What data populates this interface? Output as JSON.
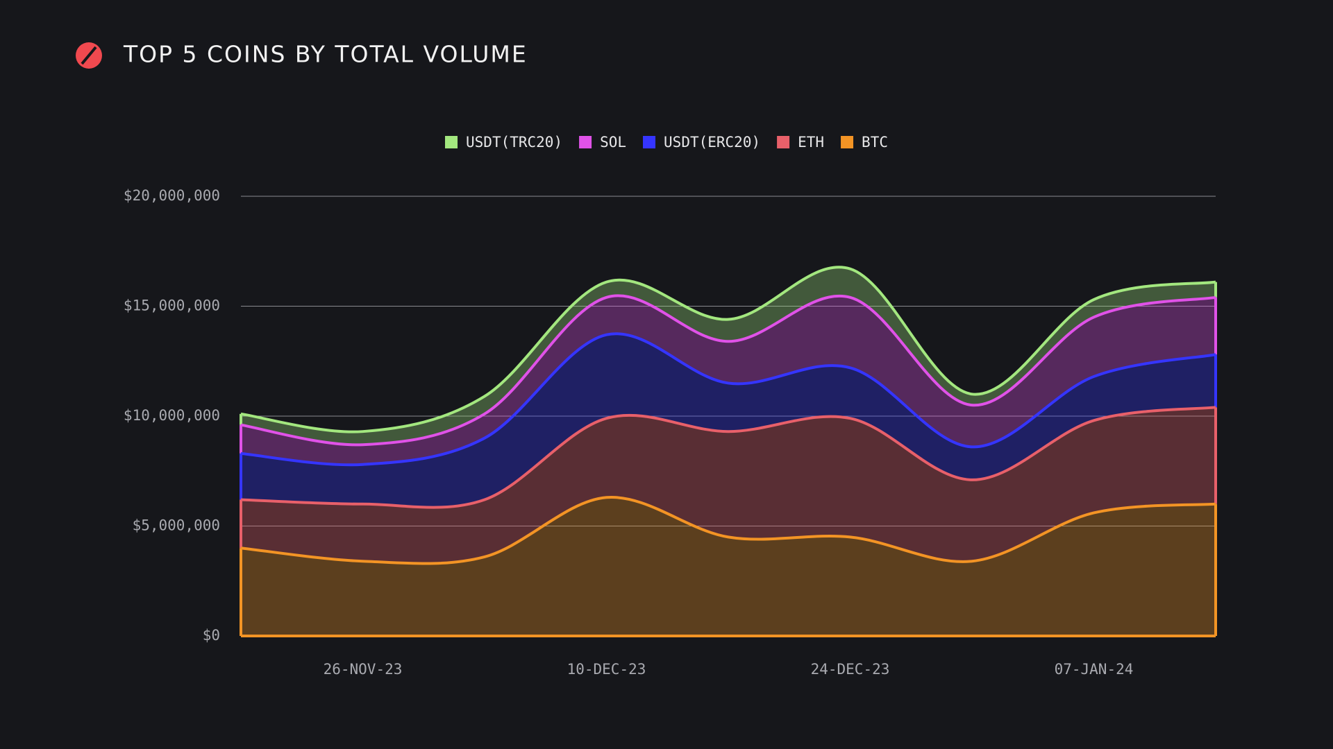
{
  "chart_data": {
    "type": "stacked-area",
    "title": "TOP 5 COINS BY TOTAL VOLUME",
    "categories": [
      null,
      "26-NOV-23",
      null,
      "10-DEC-23",
      null,
      "24-DEC-23",
      null,
      "07-JAN-24",
      null
    ],
    "series": [
      {
        "name": "USDT(TRC20)",
        "color": "#a3e77f",
        "values": [
          500000,
          600000,
          800000,
          700000,
          1000000,
          1300000,
          500000,
          800000,
          700000
        ]
      },
      {
        "name": "SOL",
        "color": "#e052e8",
        "values": [
          1300000,
          900000,
          1100000,
          1700000,
          1900000,
          3200000,
          1900000,
          2700000,
          2600000
        ]
      },
      {
        "name": "USDT(ERC20)",
        "color": "#3535ff",
        "values": [
          2100000,
          1800000,
          2800000,
          3800000,
          2200000,
          2300000,
          1500000,
          2000000,
          2400000
        ]
      },
      {
        "name": "ETH",
        "color": "#e8606a",
        "values": [
          2200000,
          2600000,
          2600000,
          3600000,
          4800000,
          5400000,
          3700000,
          4200000,
          4400000
        ]
      },
      {
        "name": "BTC",
        "color": "#f39425",
        "values": [
          4000000,
          3400000,
          3600000,
          6300000,
          4500000,
          4500000,
          3400000,
          5600000,
          6000000
        ]
      }
    ],
    "ylim": [
      0,
      20000000
    ],
    "yticks": [
      {
        "value": 0,
        "label": "$0"
      },
      {
        "value": 5000000,
        "label": "$5,000,000"
      },
      {
        "value": 10000000,
        "label": "$10,000,000"
      },
      {
        "value": 15000000,
        "label": "$15,000,000"
      },
      {
        "value": 20000000,
        "label": "$20,000,000"
      }
    ],
    "grid": true
  }
}
